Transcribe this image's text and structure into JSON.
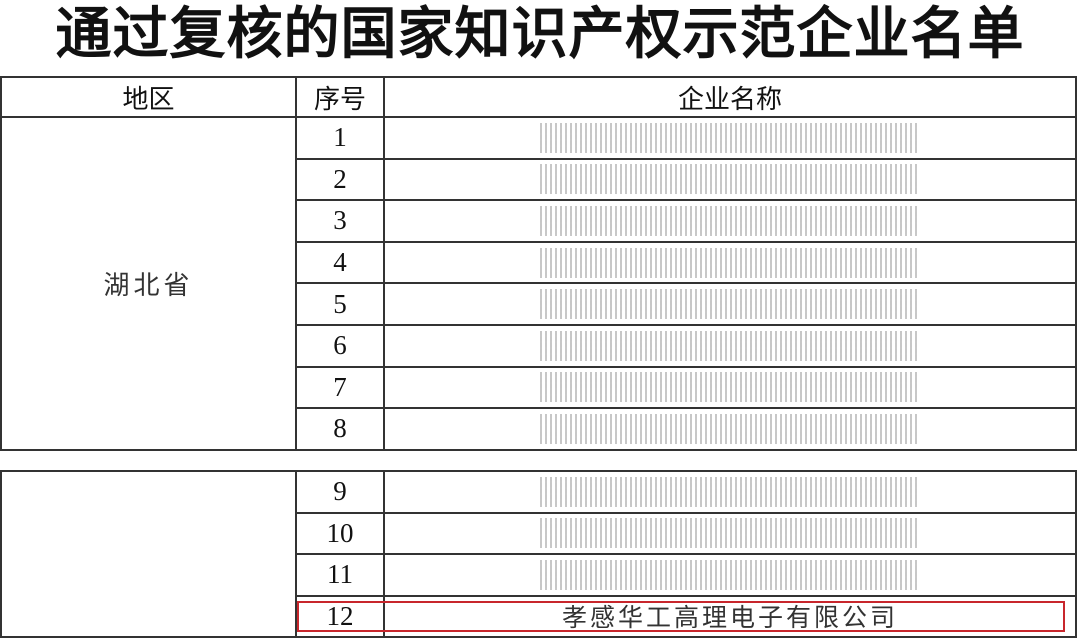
{
  "title": "通过复核的国家知识产权示范企业名单",
  "headers": {
    "region": "地区",
    "index": "序号",
    "company": "企业名称"
  },
  "group1": {
    "region": "湖北省",
    "rows": [
      {
        "index": "1",
        "company": ""
      },
      {
        "index": "2",
        "company": ""
      },
      {
        "index": "3",
        "company": ""
      },
      {
        "index": "4",
        "company": ""
      },
      {
        "index": "5",
        "company": ""
      },
      {
        "index": "6",
        "company": ""
      },
      {
        "index": "7",
        "company": ""
      },
      {
        "index": "8",
        "company": ""
      }
    ]
  },
  "group2": {
    "region": "",
    "rows": [
      {
        "index": "9",
        "company": ""
      },
      {
        "index": "10",
        "company": ""
      },
      {
        "index": "11",
        "company": ""
      },
      {
        "index": "12",
        "company": "孝感华工高理电子有限公司",
        "highlighted": true
      }
    ]
  },
  "colors": {
    "highlight": "#c8262c",
    "border": "#333333"
  }
}
